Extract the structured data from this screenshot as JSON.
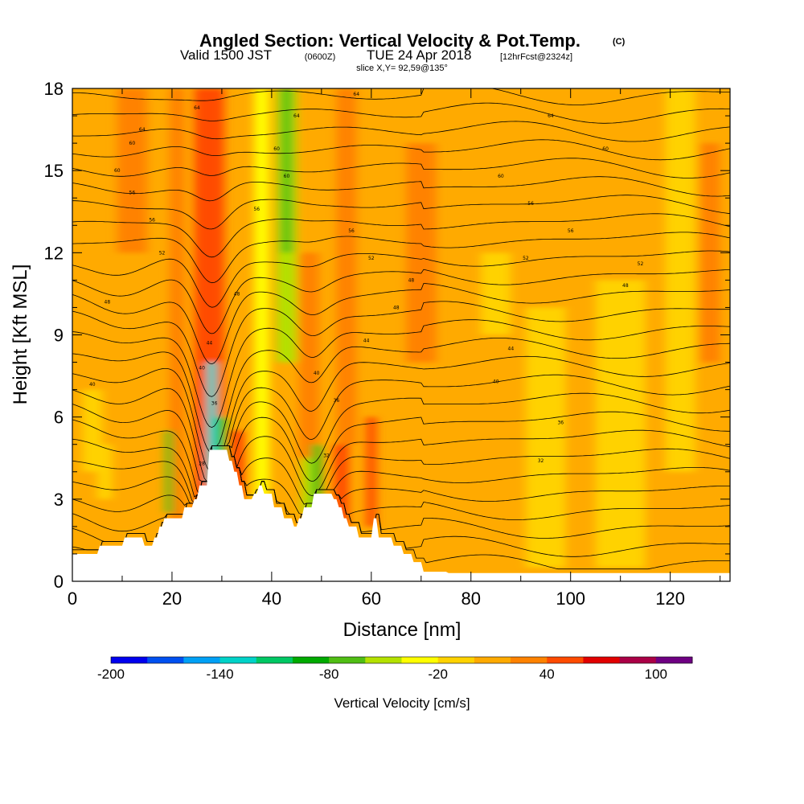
{
  "chart_data": {
    "type": "heatmap",
    "title": "Angled Section: Vertical Velocity & Pot.Temp.",
    "title_units": "(C)",
    "subtitle": {
      "valid": "Valid 1500 JST",
      "utc": "(0600Z)",
      "date": "TUE 24 Apr 2018",
      "forecast": "[12hrFcst@2324z]"
    },
    "slice_label": "slice X,Y= 92,59@135°",
    "xlabel": "Distance [nm]",
    "ylabel": "Height [Kft MSL]",
    "xlim": [
      0,
      132
    ],
    "ylim": [
      0,
      18
    ],
    "x_ticks": [
      "0",
      "20",
      "40",
      "60",
      "80",
      "100",
      "120"
    ],
    "y_ticks": [
      "0",
      "3",
      "6",
      "9",
      "12",
      "15",
      "18"
    ],
    "colorbar": {
      "label": "Vertical Velocity [cm/s]",
      "tick_labels": [
        "-200",
        "-140",
        "-80",
        "-20",
        "40",
        "100"
      ],
      "colors": [
        "#0000ee",
        "#0050f0",
        "#00a0f5",
        "#00d2c8",
        "#00c864",
        "#00aa00",
        "#50be14",
        "#b4e100",
        "#ffff00",
        "#ffd200",
        "#ffaa00",
        "#ff8200",
        "#ff4b00",
        "#e10000",
        "#aa0046",
        "#6e0082"
      ]
    },
    "background_color": "#ffaa00",
    "velocity_features": [
      {
        "x": 28.5,
        "width": 3.0,
        "ymin": 5.5,
        "ymax": 18,
        "value": 110
      },
      {
        "x": 27.5,
        "width": 6.0,
        "ymin": 2,
        "ymax": 18,
        "value": 45
      },
      {
        "x": 25.5,
        "width": 2.0,
        "ymin": 7,
        "ymax": 18,
        "value": 45
      },
      {
        "x": 21.0,
        "width": 3.0,
        "ymin": 2,
        "ymax": 18,
        "value": 30
      },
      {
        "x": 19.5,
        "width": 1.5,
        "ymin": 2.5,
        "ymax": 5.5,
        "value": -80
      },
      {
        "x": 28.0,
        "width": 2.0,
        "ymin": 3.5,
        "ymax": 8,
        "value": -140
      },
      {
        "x": 30.0,
        "width": 2.0,
        "ymin": 3,
        "ymax": 6,
        "value": -80
      },
      {
        "x": 33.0,
        "width": 3.0,
        "ymin": 3,
        "ymax": 5.5,
        "value": 45
      },
      {
        "x": 43.0,
        "width": 4.0,
        "ymin": 8,
        "ymax": 18,
        "value": -50
      },
      {
        "x": 43.0,
        "width": 2.0,
        "ymin": 12,
        "ymax": 18,
        "value": -80
      },
      {
        "x": 38.0,
        "width": 3.0,
        "ymin": 3,
        "ymax": 18,
        "value": -25
      },
      {
        "x": 47.5,
        "width": 4.0,
        "ymin": 3,
        "ymax": 12,
        "value": 35
      },
      {
        "x": 49.0,
        "width": 2.0,
        "ymin": 2.5,
        "ymax": 5,
        "value": -80
      },
      {
        "x": 47.0,
        "width": 2.0,
        "ymin": 2.5,
        "ymax": 4.5,
        "value": -50
      },
      {
        "x": 54.0,
        "width": 3.0,
        "ymin": 2,
        "ymax": 5,
        "value": 45
      },
      {
        "x": 55.0,
        "width": 4.0,
        "ymin": 5,
        "ymax": 18,
        "value": 30
      },
      {
        "x": 60.0,
        "width": 2.0,
        "ymin": 2,
        "ymax": 6,
        "value": 45
      },
      {
        "x": 12.0,
        "width": 6.0,
        "ymin": 12,
        "ymax": 18,
        "value": 30
      },
      {
        "x": 4.0,
        "width": 4.0,
        "ymin": 4,
        "ymax": 7,
        "value": -20
      },
      {
        "x": 6.5,
        "width": 3.0,
        "ymin": 3,
        "ymax": 5,
        "value": -20
      },
      {
        "x": 70.0,
        "width": 6.0,
        "ymin": 8,
        "ymax": 16,
        "value": 30
      },
      {
        "x": 95.0,
        "width": 8.0,
        "ymin": 0.5,
        "ymax": 10,
        "value": -15
      },
      {
        "x": 110.0,
        "width": 10.0,
        "ymin": 0.5,
        "ymax": 11,
        "value": -15
      },
      {
        "x": 85.0,
        "width": 6.0,
        "ymin": 9,
        "ymax": 12,
        "value": -15
      },
      {
        "x": 122.0,
        "width": 6.0,
        "ymin": 4,
        "ymax": 18,
        "value": -15
      },
      {
        "x": 128.0,
        "width": 4.0,
        "ymin": 8,
        "ymax": 16,
        "value": 25
      }
    ],
    "terrain": {
      "x": [
        0,
        5,
        5.5,
        10,
        10.5,
        14,
        14.5,
        16,
        16.5,
        17,
        17.5,
        18,
        18.5,
        22,
        22.5,
        24,
        24.5,
        25,
        25.5,
        27,
        27.5,
        31,
        31.5,
        32,
        32.5,
        33,
        33.5,
        34,
        34.5,
        36,
        36.5,
        37,
        37.5,
        38,
        38.5,
        40,
        40.5,
        42,
        42.5,
        44,
        44.5,
        45,
        45.5,
        46,
        46.5,
        48,
        48.5,
        52,
        52.5,
        53,
        53.5,
        54,
        54.5,
        55,
        55.5,
        57,
        57.5,
        60,
        60.5,
        61,
        61.5,
        64,
        64.5,
        66,
        66.5,
        68,
        68.5,
        70,
        70.5,
        75,
        75.5,
        132
      ],
      "height": [
        1,
        1,
        1.3,
        1.3,
        1.6,
        1.6,
        1.3,
        1.3,
        1.6,
        1.6,
        2,
        2,
        2.3,
        2.3,
        2.7,
        2.7,
        3,
        3,
        3.5,
        3.5,
        4.8,
        4.8,
        4.4,
        4.4,
        4,
        4,
        3.5,
        3.5,
        3,
        3,
        3.2,
        3.2,
        3.5,
        3.5,
        3.2,
        3.2,
        2.7,
        2.7,
        2.3,
        2.3,
        2,
        2,
        2.3,
        2.3,
        2.7,
        2.7,
        3.2,
        3.2,
        3,
        3,
        2.7,
        2.7,
        2.3,
        2.3,
        2,
        2,
        1.6,
        1.6,
        2.3,
        2.3,
        1.6,
        1.6,
        1.3,
        1.3,
        1,
        1,
        0.7,
        0.7,
        0.35,
        0.35,
        0.3,
        0.3
      ]
    },
    "isentropes_count": 28,
    "contour_labels": [
      {
        "text": "64",
        "x": 57,
        "y": 17.8
      },
      {
        "text": "64",
        "x": 25,
        "y": 17.3
      },
      {
        "text": "64",
        "x": 96,
        "y": 17.0
      },
      {
        "text": "64",
        "x": 45,
        "y": 17.0
      },
      {
        "text": "64",
        "x": 14,
        "y": 16.5
      },
      {
        "text": "60",
        "x": 12,
        "y": 16.0
      },
      {
        "text": "60",
        "x": 41,
        "y": 15.8
      },
      {
        "text": "60",
        "x": 107,
        "y": 15.8
      },
      {
        "text": "60",
        "x": 9,
        "y": 15.0
      },
      {
        "text": "60",
        "x": 43,
        "y": 14.8
      },
      {
        "text": "60",
        "x": 86,
        "y": 14.8
      },
      {
        "text": "56",
        "x": 12,
        "y": 14.2
      },
      {
        "text": "56",
        "x": 37,
        "y": 13.6
      },
      {
        "text": "56",
        "x": 92,
        "y": 13.8
      },
      {
        "text": "56",
        "x": 16,
        "y": 13.2
      },
      {
        "text": "56",
        "x": 56,
        "y": 12.8
      },
      {
        "text": "56",
        "x": 100,
        "y": 12.8
      },
      {
        "text": "52",
        "x": 18,
        "y": 12.0
      },
      {
        "text": "52",
        "x": 60,
        "y": 11.8
      },
      {
        "text": "52",
        "x": 91,
        "y": 11.8
      },
      {
        "text": "52",
        "x": 114,
        "y": 11.6
      },
      {
        "text": "48",
        "x": 68,
        "y": 11.0
      },
      {
        "text": "48",
        "x": 111,
        "y": 10.8
      },
      {
        "text": "48",
        "x": 33,
        "y": 10.5
      },
      {
        "text": "48",
        "x": 7,
        "y": 10.2
      },
      {
        "text": "48",
        "x": 65,
        "y": 10.0
      },
      {
        "text": "44",
        "x": 59,
        "y": 8.8
      },
      {
        "text": "44",
        "x": 27.5,
        "y": 8.7
      },
      {
        "text": "44",
        "x": 88,
        "y": 8.5
      },
      {
        "text": "40",
        "x": 26,
        "y": 7.8
      },
      {
        "text": "40",
        "x": 49,
        "y": 7.6
      },
      {
        "text": "40",
        "x": 85,
        "y": 7.3
      },
      {
        "text": "40",
        "x": 4,
        "y": 7.2
      },
      {
        "text": "36",
        "x": 53,
        "y": 6.6
      },
      {
        "text": "36",
        "x": 28.5,
        "y": 6.5
      },
      {
        "text": "36",
        "x": 98,
        "y": 5.8
      },
      {
        "text": "32",
        "x": 51,
        "y": 4.6
      },
      {
        "text": "32",
        "x": 94,
        "y": 4.4
      },
      {
        "text": "28",
        "x": 26,
        "y": 4.3
      }
    ]
  }
}
